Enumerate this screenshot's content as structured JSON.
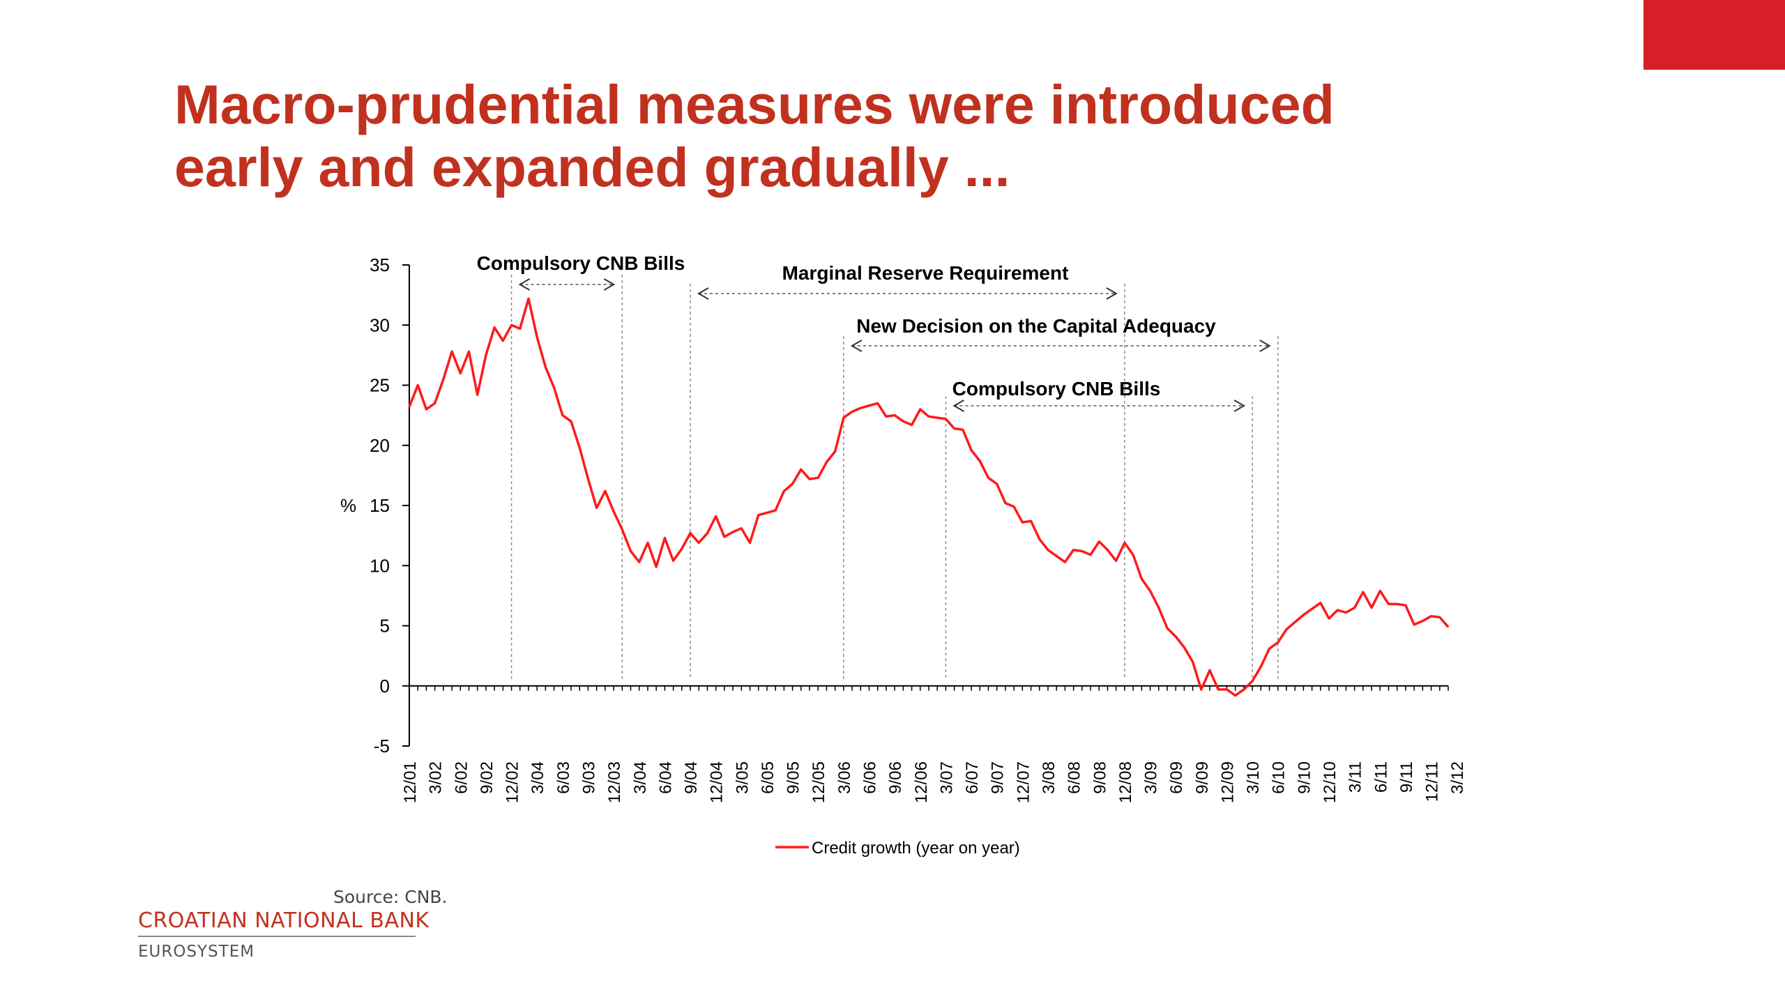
{
  "slide": {
    "title_line1": "Macro-prudential measures were introduced",
    "title_line2": "early and expanded gradually ...",
    "source": "Source: CNB.",
    "brand_name": "CROATIAN NATIONAL BANK",
    "brand_sub": "EUROSYSTEM"
  },
  "colors": {
    "accent": "#c0311f",
    "corner": "#d61f26",
    "series": "#ff1a1a",
    "axis": "#000000",
    "dashed": "#8c8c8c"
  },
  "chart_data": {
    "type": "line",
    "ylabel": "%",
    "ylim": [
      -5,
      35
    ],
    "yticks": [
      35,
      30,
      25,
      20,
      15,
      10,
      5,
      0,
      -5
    ],
    "x_tick_labels": [
      "12/01",
      "3/02",
      "6/02",
      "9/02",
      "12/02",
      "3/04",
      "6/03",
      "9/03",
      "12/03",
      "3/04",
      "6/04",
      "9/04",
      "12/04",
      "3/05",
      "6/05",
      "9/05",
      "12/05",
      "3/06",
      "6/06",
      "9/06",
      "12/06",
      "3/07",
      "6/07",
      "9/07",
      "12/07",
      "3/08",
      "6/08",
      "9/08",
      "12/08",
      "3/09",
      "6/09",
      "9/09",
      "12/09",
      "3/10",
      "6/10",
      "9/10",
      "12/10",
      "3/11",
      "6/11",
      "9/11",
      "12/11",
      "3/12"
    ],
    "legend_position": "bottom",
    "series": [
      {
        "name": "Credit growth (year on year)",
        "values": [
          23.2,
          25.0,
          23.0,
          23.5,
          25.5,
          27.8,
          26.0,
          27.8,
          24.2,
          27.5,
          29.8,
          28.7,
          30.0,
          29.7,
          32.2,
          29.0,
          26.5,
          24.8,
          22.5,
          22.0,
          19.8,
          17.2,
          14.8,
          16.2,
          14.5,
          13.0,
          11.2,
          10.3,
          11.9,
          9.9,
          12.3,
          10.4,
          11.4,
          12.7,
          11.9,
          12.7,
          14.1,
          12.4,
          12.8,
          13.1,
          11.9,
          14.2,
          14.4,
          14.6,
          16.2,
          16.8,
          18.0,
          17.2,
          17.3,
          18.6,
          19.5,
          22.3,
          22.8,
          23.1,
          23.3,
          23.5,
          22.4,
          22.5,
          22.0,
          21.7,
          23.0,
          22.4,
          22.3,
          22.2,
          21.4,
          21.3,
          19.6,
          18.7,
          17.3,
          16.8,
          15.2,
          14.9,
          13.6,
          13.7,
          12.2,
          11.3,
          10.8,
          10.3,
          11.3,
          11.2,
          10.9,
          12.0,
          11.3,
          10.4,
          11.9,
          10.9,
          8.9,
          7.9,
          6.5,
          4.8,
          4.1,
          3.2,
          2.0,
          -0.3,
          1.3,
          -0.3,
          -0.3,
          -0.8,
          -0.3,
          0.4,
          1.6,
          3.1,
          3.6,
          4.7,
          5.3,
          5.9,
          6.4,
          6.9,
          5.6,
          6.3,
          6.1,
          6.5,
          7.8,
          6.5,
          7.9,
          6.8,
          6.8,
          6.7,
          5.1,
          5.4,
          5.8,
          5.7,
          4.9
        ]
      }
    ],
    "annotations": [
      {
        "label": "Compulsory CNB Bills",
        "start_month_index": 12,
        "end_month_index": 25
      },
      {
        "label": "Marginal Reserve Requirement",
        "start_month_index": 33,
        "end_month_index": 84
      },
      {
        "label": "New Decision on the Capital Adequacy",
        "start_month_index": 51,
        "end_month_index": 102
      },
      {
        "label": "Compulsory  CNB Bills",
        "start_month_index": 63,
        "end_month_index": 99
      }
    ]
  }
}
